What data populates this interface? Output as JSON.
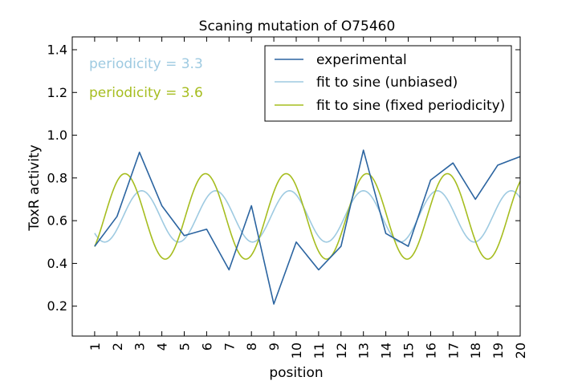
{
  "chart_data": {
    "type": "line",
    "title": "Scaning mutation of O75460",
    "xlabel": "position",
    "ylabel": "ToxR activity",
    "xlim": [
      0,
      20
    ],
    "ylim": [
      0.06,
      1.46
    ],
    "x_ticks": [
      "1",
      "2",
      "3",
      "4",
      "5",
      "6",
      "7",
      "8",
      "9",
      "10",
      "11",
      "12",
      "13",
      "14",
      "15",
      "16",
      "17",
      "18",
      "19",
      "20"
    ],
    "y_ticks": [
      "0.2",
      "0.4",
      "0.6",
      "0.8",
      "1.0",
      "1.2",
      "1.4"
    ],
    "grid": false,
    "legend_position": "top-right",
    "annotations": [
      {
        "text": "periodicity = 3.3",
        "color": "#9ecae1"
      },
      {
        "text": "periodicity = 3.6",
        "color": "#a6bd1f"
      }
    ],
    "series": [
      {
        "name": "experimental",
        "color": "#2b64a0",
        "x": [
          1,
          2,
          3,
          4,
          5,
          6,
          7,
          8,
          9,
          10,
          11,
          12,
          13,
          14,
          15,
          16,
          17,
          18,
          19,
          20
        ],
        "y": [
          0.48,
          0.62,
          0.92,
          0.67,
          0.53,
          0.56,
          0.37,
          0.67,
          0.21,
          0.5,
          0.37,
          0.48,
          0.93,
          0.54,
          0.48,
          0.79,
          0.87,
          0.7,
          0.86,
          0.9
        ]
      },
      {
        "name": "fit to sine (unbiased)",
        "color": "#9ecae1",
        "fit": {
          "mean": 0.62,
          "amplitude": 0.12,
          "period": 3.3,
          "peak_x": 3.1
        }
      },
      {
        "name": "fit to sine (fixed periodicity)",
        "color": "#a6bd1f",
        "fit": {
          "mean": 0.62,
          "amplitude": 0.2,
          "period": 3.6,
          "peak_x": 2.35
        }
      }
    ]
  }
}
